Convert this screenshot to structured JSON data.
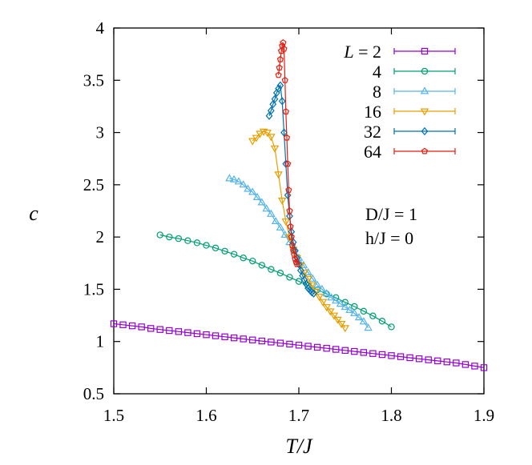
{
  "chart_data": {
    "type": "line",
    "xlabel": "T/J",
    "ylabel": "c",
    "xlim": [
      1.5,
      1.9
    ],
    "ylim": [
      0.5,
      4
    ],
    "xticks": [
      "1.5",
      "1.6",
      "1.7",
      "1.8",
      "1.9"
    ],
    "yticks": [
      "0.5",
      "1",
      "1.5",
      "2",
      "2.5",
      "3",
      "3.5",
      "4"
    ],
    "grid": false,
    "legend_position": "top-right",
    "legend_prefix": "L = ",
    "annotations": [
      "D/J = 1",
      "h/J = 0"
    ],
    "series": [
      {
        "name": "2",
        "color": "#9400d3",
        "marker": "square",
        "x": [
          1.5,
          1.51,
          1.52,
          1.53,
          1.54,
          1.55,
          1.56,
          1.57,
          1.58,
          1.59,
          1.6,
          1.61,
          1.62,
          1.63,
          1.64,
          1.65,
          1.66,
          1.67,
          1.68,
          1.69,
          1.7,
          1.71,
          1.72,
          1.73,
          1.74,
          1.75,
          1.76,
          1.77,
          1.78,
          1.79,
          1.8,
          1.81,
          1.82,
          1.83,
          1.84,
          1.85,
          1.86,
          1.87,
          1.88,
          1.89,
          1.9
        ],
        "y": [
          1.17,
          1.16,
          1.15,
          1.14,
          1.125,
          1.115,
          1.105,
          1.095,
          1.085,
          1.075,
          1.065,
          1.055,
          1.045,
          1.035,
          1.025,
          1.015,
          1.005,
          0.995,
          0.985,
          0.975,
          0.965,
          0.955,
          0.945,
          0.935,
          0.925,
          0.915,
          0.905,
          0.895,
          0.885,
          0.875,
          0.865,
          0.855,
          0.845,
          0.835,
          0.825,
          0.815,
          0.805,
          0.795,
          0.78,
          0.765,
          0.75
        ]
      },
      {
        "name": "4",
        "color": "#009e73",
        "marker": "circle",
        "x": [
          1.55,
          1.56,
          1.57,
          1.58,
          1.59,
          1.6,
          1.61,
          1.62,
          1.63,
          1.64,
          1.65,
          1.66,
          1.67,
          1.68,
          1.69,
          1.7,
          1.71,
          1.72,
          1.73,
          1.74,
          1.75,
          1.76,
          1.77,
          1.78,
          1.79,
          1.8
        ],
        "y": [
          2.02,
          2.0,
          1.985,
          1.965,
          1.945,
          1.92,
          1.895,
          1.865,
          1.835,
          1.8,
          1.77,
          1.73,
          1.69,
          1.655,
          1.615,
          1.575,
          1.535,
          1.495,
          1.455,
          1.42,
          1.375,
          1.335,
          1.29,
          1.245,
          1.195,
          1.14
        ]
      },
      {
        "name": "8",
        "color": "#56b4e9",
        "marker": "triangle-up",
        "x": [
          1.625,
          1.63,
          1.635,
          1.64,
          1.645,
          1.65,
          1.655,
          1.66,
          1.665,
          1.67,
          1.675,
          1.68,
          1.685,
          1.69,
          1.695,
          1.7,
          1.705,
          1.71,
          1.715,
          1.72,
          1.725,
          1.73,
          1.735,
          1.74,
          1.745,
          1.75,
          1.755,
          1.76,
          1.765,
          1.77,
          1.775
        ],
        "y": [
          2.56,
          2.55,
          2.53,
          2.5,
          2.46,
          2.43,
          2.38,
          2.33,
          2.27,
          2.22,
          2.15,
          2.09,
          2.02,
          1.95,
          1.88,
          1.8,
          1.73,
          1.66,
          1.6,
          1.54,
          1.5,
          1.46,
          1.42,
          1.39,
          1.36,
          1.33,
          1.3,
          1.27,
          1.23,
          1.19,
          1.13
        ]
      },
      {
        "name": "16",
        "color": "#e69f00",
        "marker": "triangle-down",
        "x": [
          1.65,
          1.654,
          1.658,
          1.662,
          1.666,
          1.67,
          1.674,
          1.678,
          1.682,
          1.686,
          1.69,
          1.694,
          1.698,
          1.702,
          1.706,
          1.71,
          1.714,
          1.718,
          1.722,
          1.726,
          1.73,
          1.734,
          1.738,
          1.742,
          1.746,
          1.75
        ],
        "y": [
          2.92,
          2.95,
          2.99,
          3.01,
          3.0,
          2.96,
          2.85,
          2.6,
          2.35,
          2.15,
          2.0,
          1.88,
          1.8,
          1.73,
          1.66,
          1.6,
          1.54,
          1.48,
          1.43,
          1.38,
          1.33,
          1.29,
          1.25,
          1.21,
          1.17,
          1.13
        ]
      },
      {
        "name": "32",
        "color": "#0072b2",
        "marker": "diamond",
        "x": [
          1.668,
          1.67,
          1.672,
          1.674,
          1.676,
          1.678,
          1.68,
          1.682,
          1.684,
          1.686,
          1.688,
          1.69,
          1.692,
          1.694,
          1.696,
          1.698,
          1.7,
          1.702,
          1.704,
          1.706,
          1.708,
          1.71,
          1.712,
          1.714,
          1.716
        ],
        "y": [
          3.16,
          3.21,
          3.27,
          3.32,
          3.38,
          3.42,
          3.45,
          3.3,
          3.0,
          2.7,
          2.4,
          2.2,
          2.05,
          1.95,
          1.87,
          1.8,
          1.74,
          1.68,
          1.63,
          1.59,
          1.55,
          1.51,
          1.49,
          1.47,
          1.46
        ]
      },
      {
        "name": "64",
        "color": "#e51e10",
        "marker": "pentagon",
        "x": [
          1.678,
          1.679,
          1.68,
          1.681,
          1.682,
          1.683,
          1.684,
          1.685,
          1.686,
          1.687,
          1.688,
          1.689,
          1.69,
          1.691,
          1.692,
          1.693,
          1.694,
          1.695,
          1.696,
          1.697,
          1.698
        ],
        "y": [
          3.55,
          3.62,
          3.7,
          3.78,
          3.83,
          3.86,
          3.8,
          3.5,
          3.2,
          2.95,
          2.7,
          2.45,
          2.25,
          2.1,
          2.0,
          1.92,
          1.87,
          1.83,
          1.79,
          1.76,
          1.74
        ]
      }
    ]
  }
}
